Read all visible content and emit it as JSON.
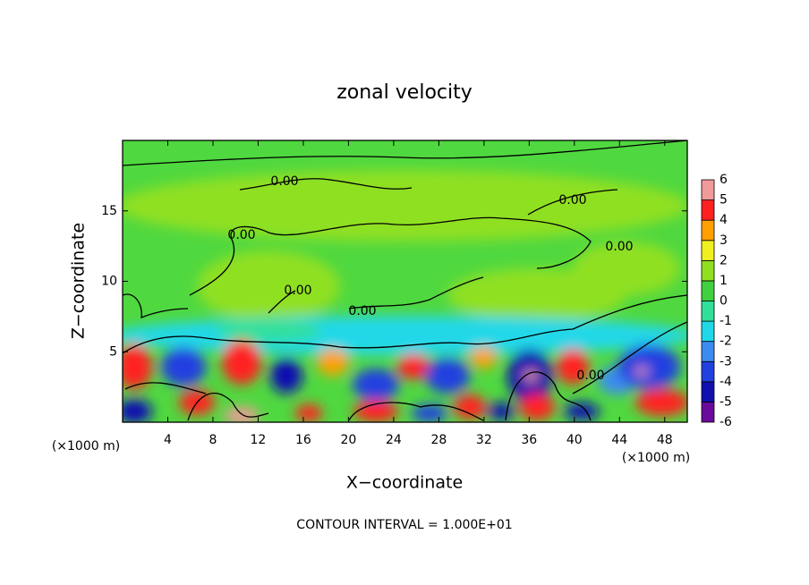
{
  "chart_data": {
    "type": "contour",
    "title": "zonal velocity",
    "x_label": "X−coordinate",
    "y_label": "Z−coordinate",
    "x_unit": "(×1000 m)",
    "y_unit": "(×1000 m)",
    "xlim": [
      0,
      50
    ],
    "ylim": [
      0,
      20
    ],
    "xticks": [
      4,
      8,
      12,
      16,
      20,
      24,
      28,
      32,
      36,
      40,
      44,
      48
    ],
    "yticks": [
      5,
      10,
      15
    ],
    "colorbar": {
      "levels": [
        -6,
        -5,
        -4,
        -3,
        -2,
        -1,
        0,
        1,
        2,
        3,
        4,
        5,
        6
      ],
      "colors": [
        "#6a0a9a",
        "#1010b0",
        "#2040e0",
        "#3c8cf0",
        "#20d8e8",
        "#30e09a",
        "#40d040",
        "#90e020",
        "#f0f020",
        "#ffa000",
        "#ff2020",
        "#f09a9a"
      ]
    },
    "contour_labels": [
      "0.00",
      "0.00",
      "0.00",
      "0.00",
      "0.00",
      "0.00",
      "0.00"
    ],
    "footer": "CONTOUR INTERVAL = 1.000E+01"
  }
}
